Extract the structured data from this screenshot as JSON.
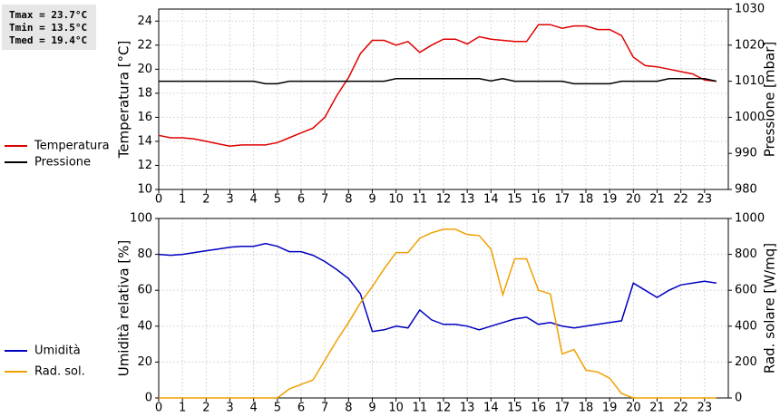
{
  "stats": [
    "Tmax = 23.7°C",
    "Tmin = 13.5°C",
    "Tmed = 19.4°C"
  ],
  "chart_data": [
    {
      "type": "line",
      "y_label": "Temperatura [°C]",
      "y2_label": "Pressione [mbar]",
      "x": [
        0,
        0.5,
        1,
        1.5,
        2,
        2.5,
        3,
        3.5,
        4,
        4.5,
        5,
        5.5,
        6,
        6.5,
        7,
        7.5,
        8,
        8.5,
        9,
        9.5,
        10,
        10.5,
        11,
        11.5,
        12,
        12.5,
        13,
        13.5,
        14,
        14.5,
        15,
        15.5,
        16,
        16.5,
        17,
        17.5,
        18,
        18.5,
        19,
        19.5,
        20,
        20.5,
        21,
        21.5,
        22,
        22.5,
        23,
        23.5
      ],
      "xlim": [
        0,
        24
      ],
      "xticks": [
        0,
        1,
        2,
        3,
        4,
        5,
        6,
        7,
        8,
        9,
        10,
        11,
        12,
        13,
        14,
        15,
        16,
        17,
        18,
        19,
        20,
        21,
        22,
        23
      ],
      "ylim": [
        10,
        25
      ],
      "yticks": [
        10,
        12,
        14,
        16,
        18,
        20,
        22,
        24
      ],
      "y2lim": [
        980,
        1030
      ],
      "y2ticks": [
        980,
        990,
        1000,
        1010,
        1020,
        1030
      ],
      "grid": true,
      "series": [
        {
          "name": "Temperatura",
          "color": "#e00000",
          "values": [
            14.5,
            14.3,
            14.3,
            14.2,
            14.0,
            13.8,
            13.6,
            13.7,
            13.7,
            13.7,
            13.9,
            14.3,
            14.7,
            15.1,
            16.0,
            17.8,
            19.3,
            21.3,
            22.4,
            22.4,
            22.0,
            22.3,
            21.4,
            22.0,
            22.5,
            22.5,
            22.1,
            22.7,
            22.5,
            22.4,
            22.3,
            22.3,
            23.7,
            23.7,
            23.4,
            23.6,
            23.6,
            23.3,
            23.3,
            22.8,
            21.0,
            20.3,
            20.2,
            20.0,
            19.8,
            19.6,
            19.1,
            19.0
          ]
        },
        {
          "name": "Pressione",
          "color": "#000000",
          "axis": "y2",
          "values": [
            1010,
            1010,
            1010,
            1010,
            1010,
            1010,
            1010,
            1010,
            1010,
            1009.3,
            1009.3,
            1010,
            1010,
            1010,
            1010,
            1010,
            1010,
            1010,
            1010,
            1010,
            1010.7,
            1010.7,
            1010.7,
            1010.7,
            1010.7,
            1010.7,
            1010.7,
            1010.7,
            1010.1,
            1010.7,
            1010,
            1010,
            1010,
            1010,
            1010,
            1009.3,
            1009.3,
            1009.3,
            1009.3,
            1010,
            1010,
            1010,
            1010,
            1010.7,
            1010.7,
            1010.7,
            1010.7,
            1010
          ]
        }
      ]
    },
    {
      "type": "line",
      "y_label": "Umidità relativa [%]",
      "y2_label": "Rad. solare [W/mq]",
      "x": [
        0,
        0.5,
        1,
        1.5,
        2,
        2.5,
        3,
        3.5,
        4,
        4.5,
        5,
        5.5,
        6,
        6.5,
        7,
        7.5,
        8,
        8.5,
        9,
        9.5,
        10,
        10.5,
        11,
        11.5,
        12,
        12.5,
        13,
        13.5,
        14,
        14.5,
        15,
        15.5,
        16,
        16.5,
        17,
        17.5,
        18,
        18.5,
        19,
        19.5,
        20,
        20.5,
        21,
        21.5,
        22,
        22.5,
        23,
        23.5
      ],
      "xlim": [
        0,
        24
      ],
      "xticks": [
        0,
        1,
        2,
        3,
        4,
        5,
        6,
        7,
        8,
        9,
        10,
        11,
        12,
        13,
        14,
        15,
        16,
        17,
        18,
        19,
        20,
        21,
        22,
        23
      ],
      "ylim": [
        0,
        100
      ],
      "yticks": [
        0,
        20,
        40,
        60,
        80,
        100
      ],
      "y2lim": [
        0,
        1000
      ],
      "y2ticks": [
        0,
        200,
        400,
        600,
        800,
        1000
      ],
      "grid": true,
      "series": [
        {
          "name": "Umidità",
          "color": "#0000c0",
          "values": [
            80,
            79.5,
            80,
            81,
            82,
            83,
            84,
            84.5,
            84.5,
            86,
            84.5,
            81.5,
            81.5,
            79.5,
            76,
            71.5,
            66.5,
            58,
            37,
            38,
            40,
            39,
            49,
            43.5,
            41,
            41,
            40,
            38,
            40,
            42,
            44,
            45,
            41,
            42,
            40,
            39,
            40,
            41,
            42,
            43,
            64,
            60,
            56,
            60,
            63,
            64,
            65,
            64
          ]
        },
        {
          "name": "Rad. sol.",
          "color": "#f0a000",
          "axis": "y2",
          "values": [
            0,
            0,
            0,
            0,
            0,
            0,
            0,
            0,
            0,
            0,
            0,
            50,
            75,
            100,
            210,
            320,
            420,
            530,
            620,
            720,
            810,
            810,
            890,
            920,
            940,
            940,
            910,
            905,
            830,
            575,
            775,
            775,
            600,
            580,
            245,
            270,
            155,
            145,
            110,
            25,
            0,
            0,
            0,
            0,
            0,
            0,
            0,
            0
          ]
        }
      ]
    }
  ]
}
